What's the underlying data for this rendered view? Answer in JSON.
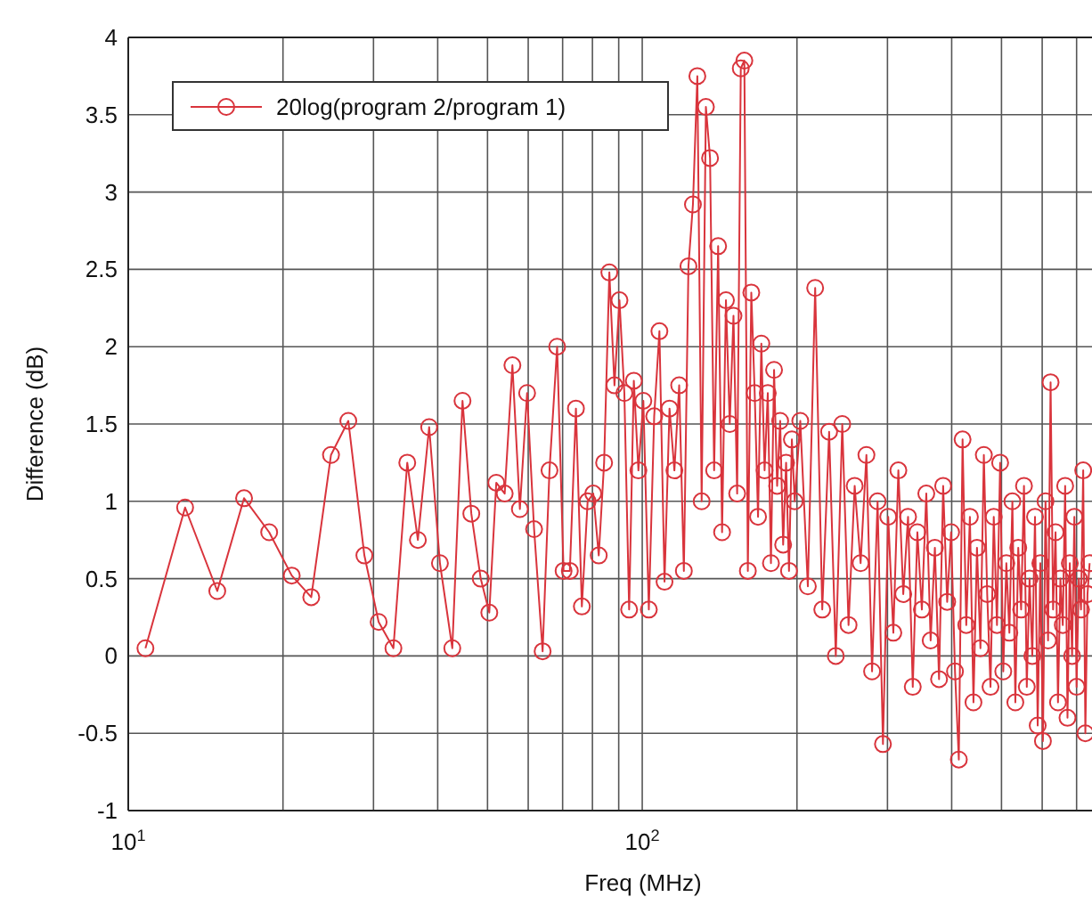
{
  "chart_data": {
    "type": "line",
    "xlabel": "Freq (MHz)",
    "ylabel": "Difference (dB)",
    "log": "x",
    "grid": true,
    "legend": "top left",
    "marker": "circle",
    "line_style": "solid",
    "xlim": [
      10,
      750
    ],
    "ylim": [
      -1,
      4
    ],
    "xticks": [
      {
        "value": 10,
        "label": "10$^{1}$"
      },
      {
        "value": 20,
        "label": null
      },
      {
        "value": 30,
        "label": null
      },
      {
        "value": 40,
        "label": null
      },
      {
        "value": 50,
        "label": null
      },
      {
        "value": 60,
        "label": null
      },
      {
        "value": 70,
        "label": null
      },
      {
        "value": 80,
        "label": null
      },
      {
        "value": 90,
        "label": null
      },
      {
        "value": 100,
        "label": "10$^{2}$"
      },
      {
        "value": 200,
        "label": null
      },
      {
        "value": 300,
        "label": null
      },
      {
        "value": 400,
        "label": null
      },
      {
        "value": 500,
        "label": null
      },
      {
        "value": 600,
        "label": null
      },
      {
        "value": 700,
        "label": null
      }
    ],
    "yticks": [
      -1,
      -0.5,
      0,
      0.5,
      1,
      1.5,
      2,
      2.5,
      3,
      3.5,
      4
    ],
    "x": [
      10.8,
      12.9,
      14.9,
      16.8,
      18.8,
      20.8,
      22.7,
      24.8,
      26.8,
      28.8,
      30.7,
      32.8,
      34.9,
      36.6,
      38.5,
      40.4,
      42.7,
      44.7,
      46.5,
      48.5,
      50.4,
      52,
      54,
      55.9,
      57.8,
      59.7,
      61.6,
      64,
      66,
      68.3,
      70.3,
      72.3,
      74.3,
      76.3,
      78.3,
      80.3,
      82.3,
      84.3,
      86.3,
      88.3,
      90.3,
      92.3,
      94.3,
      96.3,
      98.3,
      100.5,
      103,
      105.5,
      108,
      110.5,
      113,
      115.5,
      118,
      120.5,
      123,
      125.5,
      128,
      130.5,
      133,
      135.5,
      138,
      140.5,
      143,
      145.5,
      148,
      150.5,
      153,
      155.5,
      158,
      160.5,
      163,
      165.5,
      168,
      170.5,
      173,
      175.5,
      178,
      180.5,
      183,
      185.5,
      188,
      190.5,
      193,
      195.5,
      198,
      203,
      210,
      217,
      224,
      231,
      238,
      245,
      252,
      259,
      266,
      273,
      280,
      287,
      294,
      301,
      308,
      315,
      322,
      329,
      336,
      343,
      350,
      357,
      364,
      371,
      378,
      385,
      392,
      399,
      406,
      413,
      420,
      427,
      434,
      441,
      448,
      455,
      462,
      469,
      476,
      483,
      490,
      497,
      504,
      511,
      518,
      525,
      532,
      539,
      546,
      553,
      560,
      567,
      574,
      581,
      588,
      595,
      602,
      609,
      616,
      623,
      630,
      637,
      644,
      651,
      658,
      665,
      672,
      679,
      686,
      693,
      700,
      707,
      714,
      721,
      728,
      735,
      742
    ],
    "series": [
      {
        "name": "20log(program 2/program 1)",
        "color": "#d9343c",
        "values": [
          0.05,
          0.96,
          0.42,
          1.02,
          0.8,
          0.52,
          0.38,
          1.3,
          1.52,
          0.65,
          0.22,
          0.05,
          1.25,
          0.75,
          1.48,
          0.6,
          0.05,
          1.65,
          0.92,
          0.5,
          0.28,
          1.12,
          1.05,
          1.88,
          0.95,
          1.7,
          0.82,
          0.03,
          1.2,
          2.0,
          0.55,
          0.55,
          1.6,
          0.32,
          1.0,
          1.05,
          0.65,
          1.25,
          2.48,
          1.75,
          2.3,
          1.7,
          0.3,
          1.78,
          1.2,
          1.65,
          0.3,
          1.55,
          2.1,
          0.48,
          1.6,
          1.2,
          1.75,
          0.55,
          2.52,
          2.92,
          3.75,
          1.0,
          3.55,
          3.22,
          1.2,
          2.65,
          0.8,
          2.3,
          1.5,
          2.2,
          1.05,
          3.8,
          3.85,
          0.55,
          2.35,
          1.7,
          0.9,
          2.02,
          1.2,
          1.7,
          0.6,
          1.85,
          1.1,
          1.52,
          0.72,
          1.25,
          0.55,
          1.4,
          1.0,
          1.52,
          0.45,
          2.38,
          0.3,
          1.45,
          0.0,
          1.5,
          0.2,
          1.1,
          0.6,
          1.3,
          -0.1,
          1.0,
          -0.57,
          0.9,
          0.15,
          1.2,
          0.4,
          0.9,
          -0.2,
          0.8,
          0.3,
          1.05,
          0.1,
          0.7,
          -0.15,
          1.1,
          0.35,
          0.8,
          -0.1,
          -0.67,
          1.4,
          0.2,
          0.9,
          -0.3,
          0.7,
          0.05,
          1.3,
          0.4,
          -0.2,
          0.9,
          0.2,
          1.25,
          -0.1,
          0.6,
          0.15,
          1.0,
          -0.3,
          0.7,
          0.3,
          1.1,
          -0.2,
          0.5,
          0.0,
          0.9,
          -0.45,
          0.6,
          -0.55,
          1.0,
          0.1,
          1.77,
          0.3,
          0.8,
          -0.3,
          0.5,
          0.2,
          1.1,
          -0.4,
          0.6,
          0.0,
          0.9,
          -0.2,
          0.5,
          0.3,
          1.2,
          -0.5,
          0.4,
          0.6
        ]
      }
    ]
  }
}
